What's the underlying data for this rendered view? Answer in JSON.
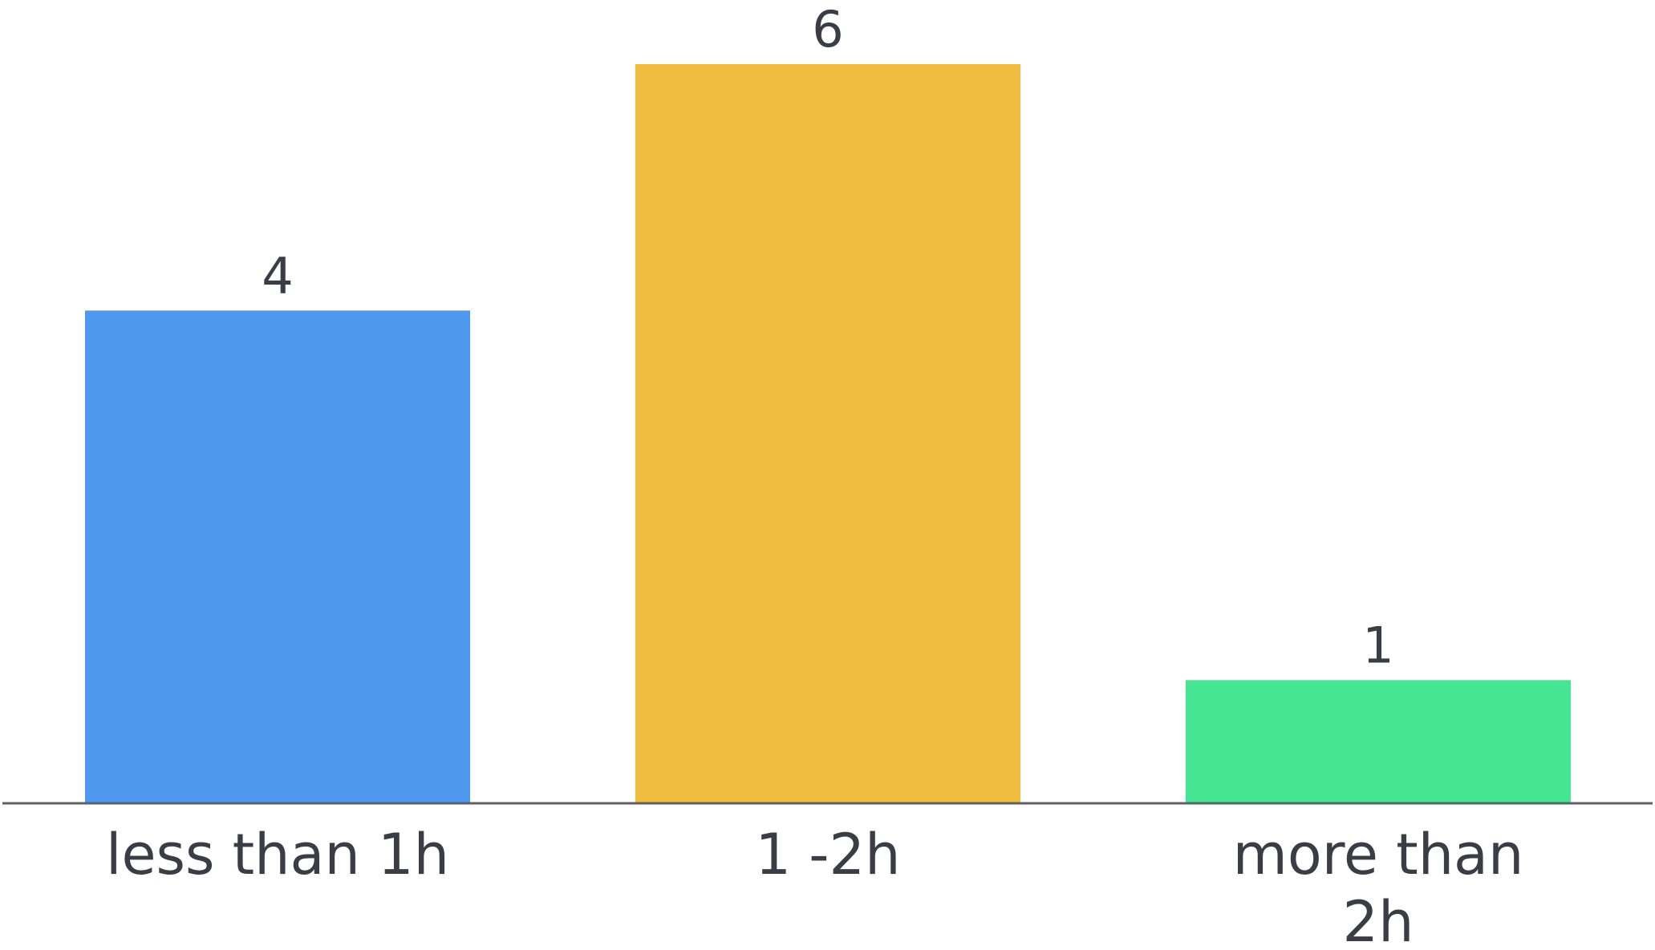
{
  "chart_data": {
    "type": "bar",
    "title": "",
    "xlabel": "",
    "ylabel": "",
    "categories": [
      [
        "less than 1h"
      ],
      [
        "1 -2h"
      ],
      [
        "more than",
        "2h"
      ]
    ],
    "values": [
      4,
      6,
      1
    ],
    "colors": [
      "#4f98ef",
      "#f0bd41",
      "#46e594"
    ],
    "baseline_color": "#5f6066",
    "ylim": [
      0,
      6
    ],
    "grid": false,
    "legend": "none",
    "data_labels": true
  }
}
